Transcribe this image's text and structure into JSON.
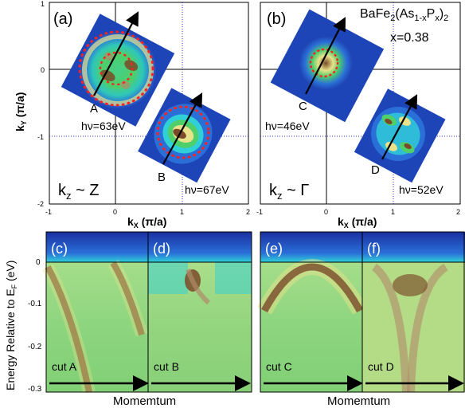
{
  "panels": {
    "a": {
      "label": "(a)",
      "ylabel_main": "k",
      "ylabel_sub": "Y",
      "ylabel_rest": " (π/a)",
      "xlabel_main": "k",
      "xlabel_sub": "X",
      "xlabel_rest": " (π/a)",
      "x_ticks": [
        "-1",
        "0",
        "1",
        "2"
      ],
      "y_ticks": [
        "1",
        "0",
        "-1",
        "-2"
      ],
      "cut_A": "A",
      "cut_B": "B",
      "hv_A": "hν=63eV",
      "hv_B": "hν=67eV",
      "kz_main": "k",
      "kz_sub": "z",
      "kz_rest": " ~ Z"
    },
    "b": {
      "label": "(b)",
      "xlabel_main": "k",
      "xlabel_sub": "X",
      "xlabel_rest": " (π/a)",
      "x_ticks": [
        "-1",
        "0",
        "1",
        "2"
      ],
      "compound_pre": "BaFe",
      "compound_2": "2",
      "compound_mid": "(As",
      "compound_1x": "1-x",
      "compound_p": "P",
      "compound_x": "x",
      "compound_close": ")",
      "compound_2b": "2",
      "doping": "x=0.38",
      "cut_C": "C",
      "cut_D": "D",
      "hv_C": "hν=46eV",
      "hv_D": "hν=52eV",
      "kz_main": "k",
      "kz_sub": "z",
      "kz_rest": " ~ Γ"
    },
    "bottom": {
      "ylabel_pre": "Energy Relative to E",
      "ylabel_sub": "F",
      "ylabel_post": " (eV)",
      "y_ticks": [
        "0",
        "-0.1",
        "-0.2",
        "-0.3"
      ],
      "xlabel": "Momemtum",
      "c_label": "(c)",
      "d_label": "(d)",
      "e_label": "(e)",
      "f_label": "(f)",
      "cut_A": "cut A",
      "cut_B": "cut B",
      "cut_C": "cut C",
      "cut_D": "cut D"
    }
  },
  "colors": {
    "deep_blue": "#1a2fa0",
    "mid_blue": "#2a6fd8",
    "cyan": "#2fd0d8",
    "green": "#4fcf6a",
    "yellow_green": "#cfe66a",
    "yellow": "#e8e28a",
    "brown": "#7a4a2a",
    "red_dot": "#ff2020",
    "guide_blue": "#2030c0"
  }
}
